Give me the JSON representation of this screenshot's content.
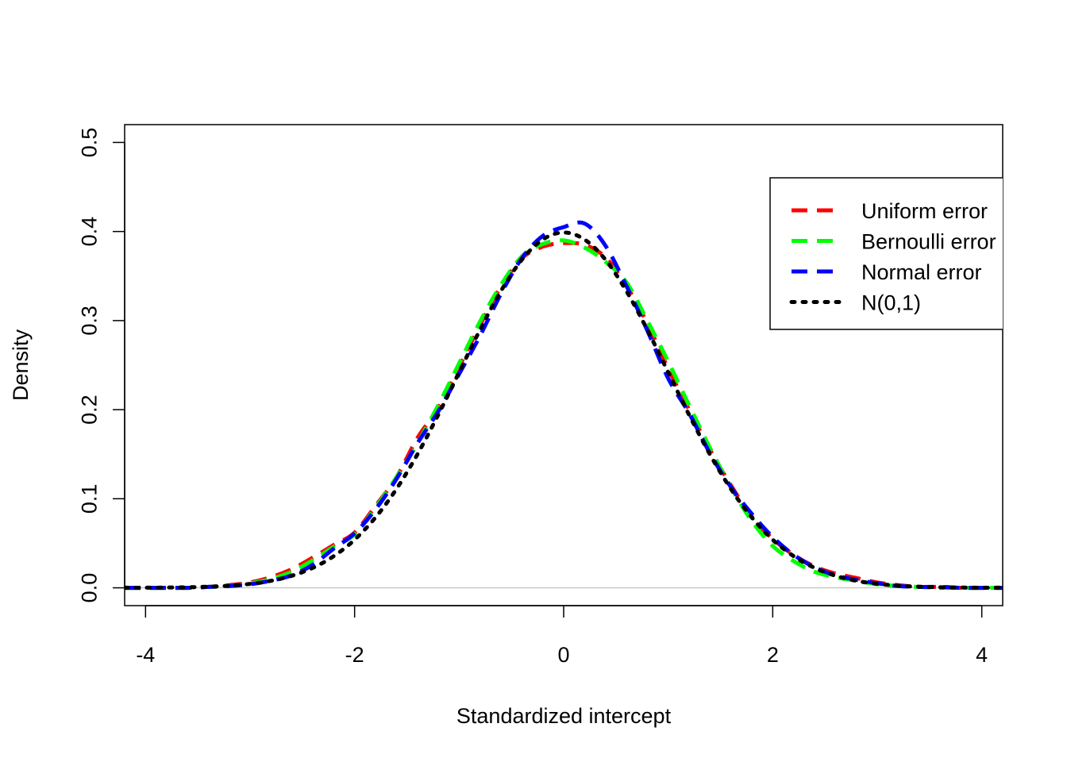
{
  "chart_data": {
    "type": "line",
    "title": "",
    "xlabel": "Standardized intercept",
    "ylabel": "Density",
    "xlim": [
      -4.2,
      4.2
    ],
    "ylim": [
      -0.02,
      0.52
    ],
    "x_ticks": [
      "-4",
      "-2",
      "0",
      "2",
      "4"
    ],
    "y_ticks": [
      "0.0",
      "0.1",
      "0.2",
      "0.3",
      "0.4",
      "0.5"
    ],
    "zero_line": true,
    "legend_position": "top-right",
    "x": [
      -4.2,
      -4.0,
      -3.8,
      -3.6,
      -3.4,
      -3.2,
      -3.0,
      -2.8,
      -2.6,
      -2.4,
      -2.2,
      -2.0,
      -1.8,
      -1.6,
      -1.4,
      -1.2,
      -1.0,
      -0.8,
      -0.6,
      -0.4,
      -0.2,
      0.0,
      0.2,
      0.4,
      0.6,
      0.8,
      1.0,
      1.2,
      1.4,
      1.6,
      1.8,
      2.0,
      2.2,
      2.4,
      2.6,
      2.8,
      3.0,
      3.2,
      3.4,
      3.6,
      3.8,
      4.0,
      4.2
    ],
    "series": [
      {
        "name": "Uniform error",
        "color": "#ff0000",
        "dash": "dashed",
        "values": [
          0.0,
          0.0,
          0.0,
          0.0,
          0.001,
          0.003,
          0.006,
          0.012,
          0.021,
          0.034,
          0.048,
          0.062,
          0.092,
          0.124,
          0.168,
          0.202,
          0.248,
          0.295,
          0.338,
          0.37,
          0.383,
          0.387,
          0.385,
          0.371,
          0.339,
          0.297,
          0.246,
          0.2,
          0.155,
          0.115,
          0.08,
          0.055,
          0.037,
          0.024,
          0.016,
          0.011,
          0.006,
          0.003,
          0.001,
          0.001,
          0.0,
          0.0,
          0.0
        ]
      },
      {
        "name": "Bernoulli error",
        "color": "#00ff00",
        "dash": "dashed",
        "values": [
          0.0,
          0.0,
          0.0,
          0.0,
          0.001,
          0.002,
          0.005,
          0.01,
          0.018,
          0.031,
          0.046,
          0.06,
          0.09,
          0.124,
          0.162,
          0.205,
          0.252,
          0.299,
          0.34,
          0.372,
          0.386,
          0.39,
          0.382,
          0.366,
          0.343,
          0.3,
          0.254,
          0.205,
          0.157,
          0.113,
          0.075,
          0.047,
          0.03,
          0.018,
          0.012,
          0.008,
          0.004,
          0.002,
          0.001,
          0.0,
          0.0,
          0.0,
          0.0
        ]
      },
      {
        "name": "Normal error",
        "color": "#0000ff",
        "dash": "dashed",
        "values": [
          0.0,
          0.0,
          0.0,
          0.0,
          0.001,
          0.002,
          0.004,
          0.008,
          0.014,
          0.026,
          0.044,
          0.061,
          0.088,
          0.122,
          0.162,
          0.198,
          0.24,
          0.283,
          0.33,
          0.37,
          0.395,
          0.405,
          0.409,
          0.384,
          0.339,
          0.289,
          0.235,
          0.196,
          0.151,
          0.113,
          0.083,
          0.057,
          0.037,
          0.023,
          0.014,
          0.009,
          0.005,
          0.002,
          0.001,
          0.001,
          0.0,
          0.0,
          0.0
        ]
      },
      {
        "name": "N(0,1)",
        "color": "#000000",
        "dash": "dotted",
        "values": [
          0.0001,
          0.0001,
          0.0003,
          0.0006,
          0.0012,
          0.0024,
          0.0044,
          0.0079,
          0.0136,
          0.0224,
          0.0355,
          0.054,
          0.079,
          0.1109,
          0.1497,
          0.1942,
          0.242,
          0.2897,
          0.3332,
          0.3683,
          0.391,
          0.3989,
          0.391,
          0.3683,
          0.3332,
          0.2897,
          0.242,
          0.1942,
          0.1497,
          0.1109,
          0.079,
          0.054,
          0.0355,
          0.0224,
          0.0136,
          0.0079,
          0.0044,
          0.0024,
          0.0012,
          0.0006,
          0.0003,
          0.0001,
          0.0001
        ]
      }
    ]
  }
}
